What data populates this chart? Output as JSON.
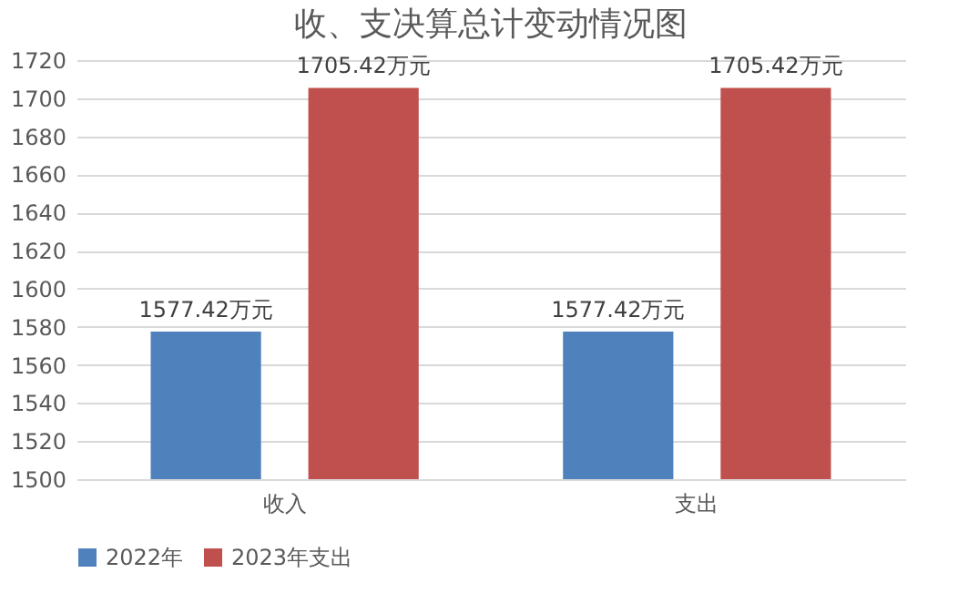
{
  "chart_data": {
    "type": "bar",
    "title": "收、支决算总计变动情况图",
    "categories": [
      "收入",
      "支出"
    ],
    "series": [
      {
        "name": "2022年",
        "color": "#4f81bd",
        "values": [
          1577.42,
          1577.42
        ],
        "value_labels": [
          "1577.42万元",
          "1577.42万元"
        ]
      },
      {
        "name": "2023年支出",
        "color": "#c0504d",
        "values": [
          1705.42,
          1705.42
        ],
        "value_labels": [
          "1705.42万元",
          "1705.42万元"
        ]
      }
    ],
    "ylim": [
      1500,
      1720
    ],
    "yticks": [
      1500,
      1520,
      1540,
      1560,
      1580,
      1600,
      1620,
      1640,
      1660,
      1680,
      1700,
      1720
    ],
    "grid": "y",
    "legend": "bottom"
  }
}
